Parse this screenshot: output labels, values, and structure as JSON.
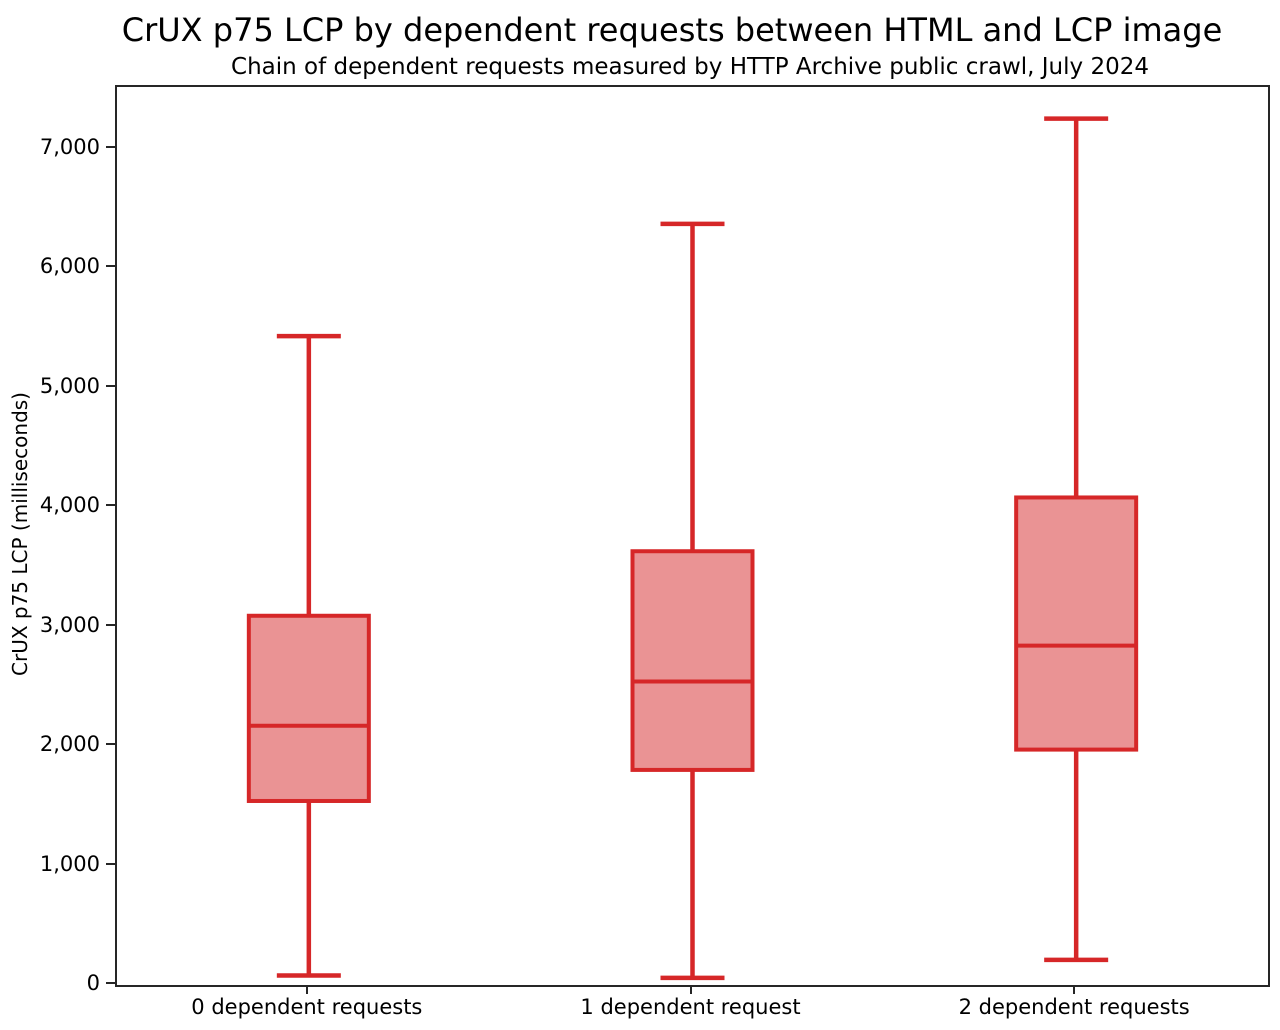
{
  "chart_data": {
    "type": "box",
    "title": "CrUX p75 LCP by dependent requests between HTML and LCP image",
    "subtitle": "Chain of dependent requests measured by HTTP Archive public crawl, July 2024",
    "ylabel": "CrUX p75 LCP (milliseconds)",
    "xlabel": "",
    "units": "milliseconds",
    "categories": [
      "0 dependent requests",
      "1 dependent request",
      "2 dependent requests"
    ],
    "boxes": [
      {
        "category": "0 dependent requests",
        "whisker_low": 80,
        "q1": 1540,
        "median": 2170,
        "q3": 3090,
        "whisker_high": 5430
      },
      {
        "category": "1 dependent request",
        "whisker_low": 60,
        "q1": 1800,
        "median": 2540,
        "q3": 3630,
        "whisker_high": 6370
      },
      {
        "category": "2 dependent requests",
        "whisker_low": 210,
        "q1": 1970,
        "median": 2840,
        "q3": 4080,
        "whisker_high": 7250
      }
    ],
    "y_ticks": [
      0,
      1000,
      2000,
      3000,
      4000,
      5000,
      6000,
      7000
    ],
    "y_tick_labels": [
      "0",
      "1,000",
      "2,000",
      "3,000",
      "4,000",
      "5,000",
      "6,000",
      "7,000"
    ],
    "ylim": [
      0,
      7515
    ],
    "grid": false,
    "legend": null,
    "colors": {
      "box_edge": "#d62728",
      "box_fill": "#ea9394",
      "axis": "#262626",
      "text": "#000000"
    }
  }
}
